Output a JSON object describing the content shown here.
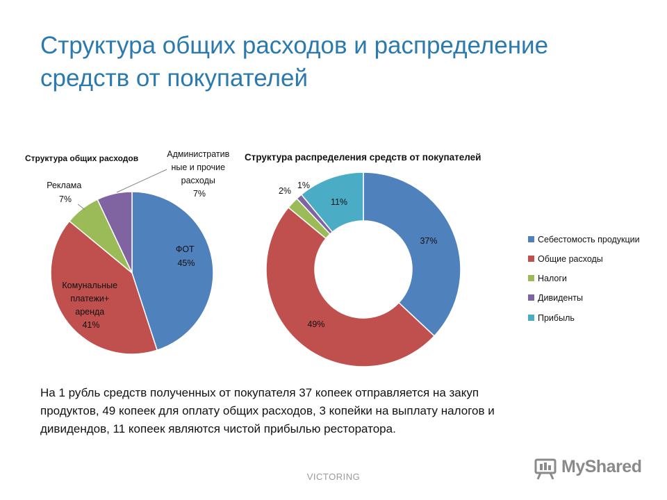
{
  "slide": {
    "title": "Структура общих расходов и распределение\nсредств от покупателей",
    "caption": "На 1 рубль средств полученных от покупателя 37 копеек отправляется на закуп\nпродуктов,  49 копеек для оплату общих расходов, 3 копейки на выплату налогов и\nдивидендов,  11 копеек являются чистой прибылью ресторатора.",
    "footer": "VICTORING",
    "logo_text": "MyShared"
  },
  "chart_data": [
    {
      "type": "pie",
      "title": "Структура общих расходов",
      "legend": "none",
      "slices": [
        {
          "label": "ФОТ",
          "value": 45,
          "value_label": "45%",
          "color": "#4f81bd"
        },
        {
          "label": "Комунальные платежи+ аренда",
          "value": 41,
          "value_label": "41%",
          "color": "#c0504d"
        },
        {
          "label": "Реклама",
          "value": 7,
          "value_label": "7%",
          "color": "#9bbb59"
        },
        {
          "label": "Административные и прочие расходы",
          "value": 7,
          "value_label": "7%",
          "color": "#8064a2"
        }
      ]
    },
    {
      "type": "pie",
      "subtype": "doughnut",
      "title": "Структура распределения средств от покупателей",
      "legend": "right",
      "slices": [
        {
          "label": "Себестомость продукции",
          "value": 37,
          "value_label": "37%",
          "color": "#4f81bd"
        },
        {
          "label": "Общие расходы",
          "value": 49,
          "value_label": "49%",
          "color": "#c0504d"
        },
        {
          "label": "Налоги",
          "value": 2,
          "value_label": "2%",
          "color": "#9bbb59"
        },
        {
          "label": "Дивиденты",
          "value": 1,
          "value_label": "1%",
          "color": "#8064a2"
        },
        {
          "label": "Прибыль",
          "value": 11,
          "value_label": "11%",
          "color": "#4bacc6"
        }
      ]
    }
  ]
}
